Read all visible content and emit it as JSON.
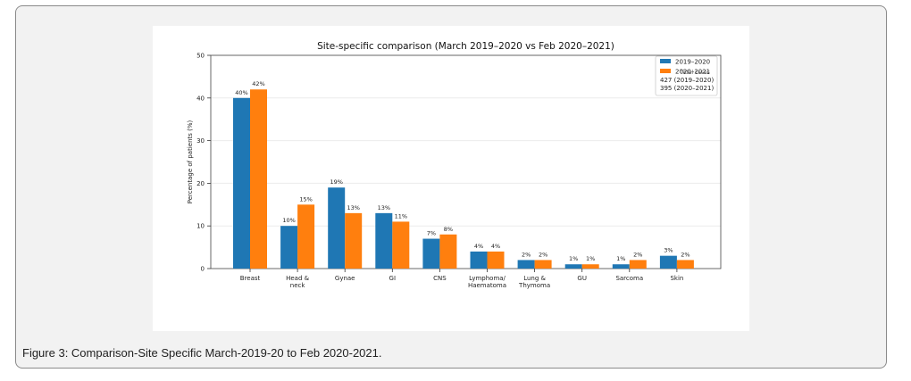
{
  "caption": "Figure 3: Comparison-Site Specific March-2019-20 to Feb 2020-2021.",
  "chart_data": {
    "type": "bar",
    "title": "Site-specific comparison (March 2019–2020 vs Feb 2020–2021)",
    "xlabel": "",
    "ylabel": "Percentage of patients (%)",
    "ylim": [
      0,
      50
    ],
    "yticks": [
      0,
      10,
      20,
      30,
      40,
      50
    ],
    "grid": "horizontal",
    "legend_position": "top-right",
    "categories": [
      "Breast",
      "Head &\nneck",
      "Gynae",
      "GI",
      "CNS",
      "Lymphoma/\nHaematoma",
      "Lung &\nThymoma",
      "GU",
      "Sarcoma",
      "Skin"
    ],
    "series": [
      {
        "name": "2019–2020",
        "color": "#1f77b4",
        "values": [
          40,
          10,
          19,
          13,
          7,
          4,
          2,
          1,
          1,
          3
        ],
        "labels": [
          "40%",
          "10%",
          "19%",
          "13%",
          "7%",
          "4%",
          "2%",
          "1%",
          "1%",
          "3%"
        ]
      },
      {
        "name": "2020–2021",
        "color": "#ff7f0e",
        "values": [
          42,
          15,
          13,
          11,
          8,
          4,
          2,
          1,
          2,
          2
        ],
        "labels": [
          "42%",
          "15%",
          "13%",
          "11%",
          "8%",
          "4%",
          "2%",
          "1%",
          "2%",
          "2%"
        ]
      }
    ],
    "legend_title": "Total cases",
    "legend_notes": [
      "427 (2019–2020)",
      "395 (2020–2021)"
    ]
  }
}
